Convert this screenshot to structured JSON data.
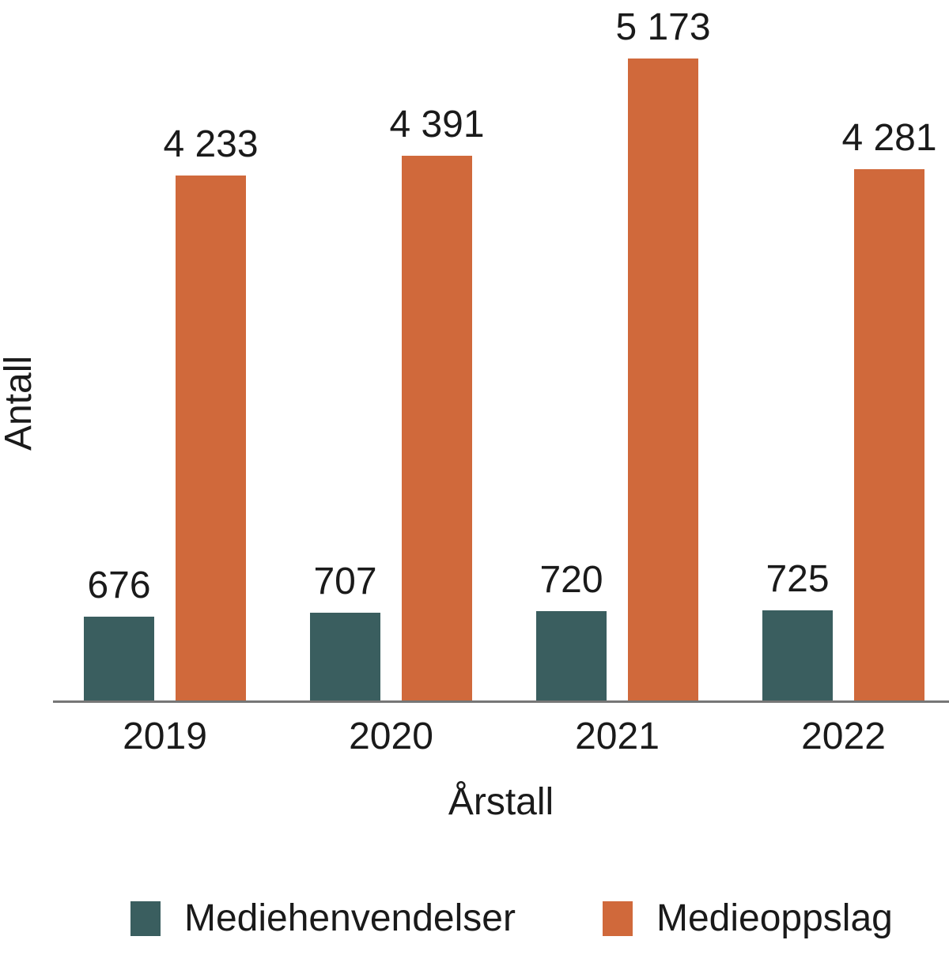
{
  "chart_data": {
    "type": "bar",
    "categories": [
      "2019",
      "2020",
      "2021",
      "2022"
    ],
    "series": [
      {
        "name": "Mediehenvendelser",
        "color": "#3A5E5F",
        "values": [
          676,
          707,
          720,
          725
        ],
        "labels": [
          "676",
          "707",
          "720",
          "725"
        ]
      },
      {
        "name": "Medieoppslag",
        "color": "#D0693B",
        "values": [
          4233,
          4391,
          5173,
          4281
        ],
        "labels": [
          "4 233",
          "4 391",
          "5 173",
          "4 281"
        ]
      }
    ],
    "title": "",
    "xlabel": "Årstall",
    "ylabel": "Antall",
    "ylim": [
      0,
      5500
    ],
    "grid": false,
    "y_axis_ticks": "none",
    "legend_position": "bottom",
    "axis_line_color": "#767676",
    "text_color": "#1a1a1a"
  }
}
